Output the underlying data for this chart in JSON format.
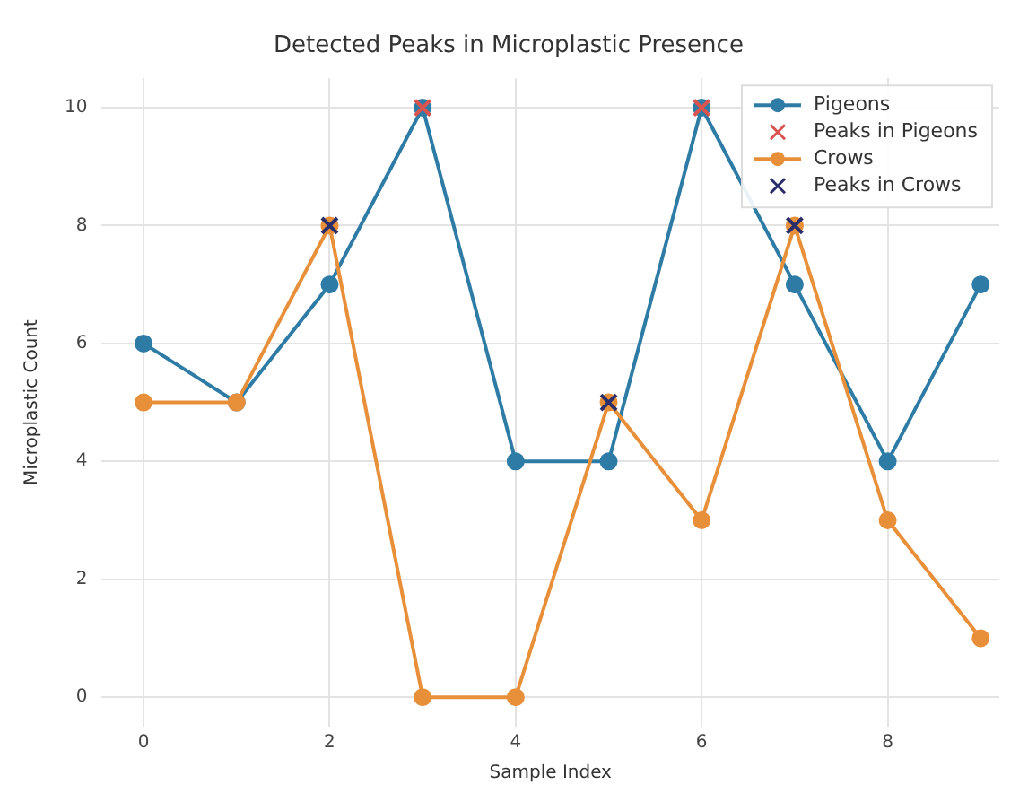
{
  "chart_data": {
    "type": "line",
    "title": "Detected Peaks in Microplastic Presence",
    "xlabel": "Sample Index",
    "ylabel": "Microplastic Count",
    "x": [
      0,
      1,
      2,
      3,
      4,
      5,
      6,
      7,
      8,
      9
    ],
    "series": [
      {
        "name": "Pigeons",
        "color": "#2e7ca6",
        "marker": "circle",
        "values": [
          6,
          5,
          7,
          10,
          4,
          4,
          10,
          7,
          4,
          7
        ]
      },
      {
        "name": "Peaks in Pigeons",
        "type": "scatter",
        "color": "#d9534f",
        "marker": "cross",
        "x": [
          3,
          6
        ],
        "values": [
          10,
          10
        ]
      },
      {
        "name": "Crows",
        "color": "#e88f3a",
        "marker": "circle",
        "values": [
          5,
          5,
          8,
          0,
          0,
          5,
          3,
          8,
          3,
          1
        ]
      },
      {
        "name": "Peaks in Crows",
        "type": "scatter",
        "color": "#2a2f6b",
        "marker": "cross",
        "x": [
          2,
          5,
          7
        ],
        "values": [
          8,
          5,
          8
        ]
      }
    ],
    "xlim": [
      -0.45,
      9.2
    ],
    "xticks": [
      0,
      2,
      4,
      6,
      8
    ],
    "ylim": [
      -0.5,
      10.5
    ],
    "yticks": [
      0,
      2,
      4,
      6,
      8,
      10
    ],
    "grid": true,
    "legend": "top right"
  }
}
